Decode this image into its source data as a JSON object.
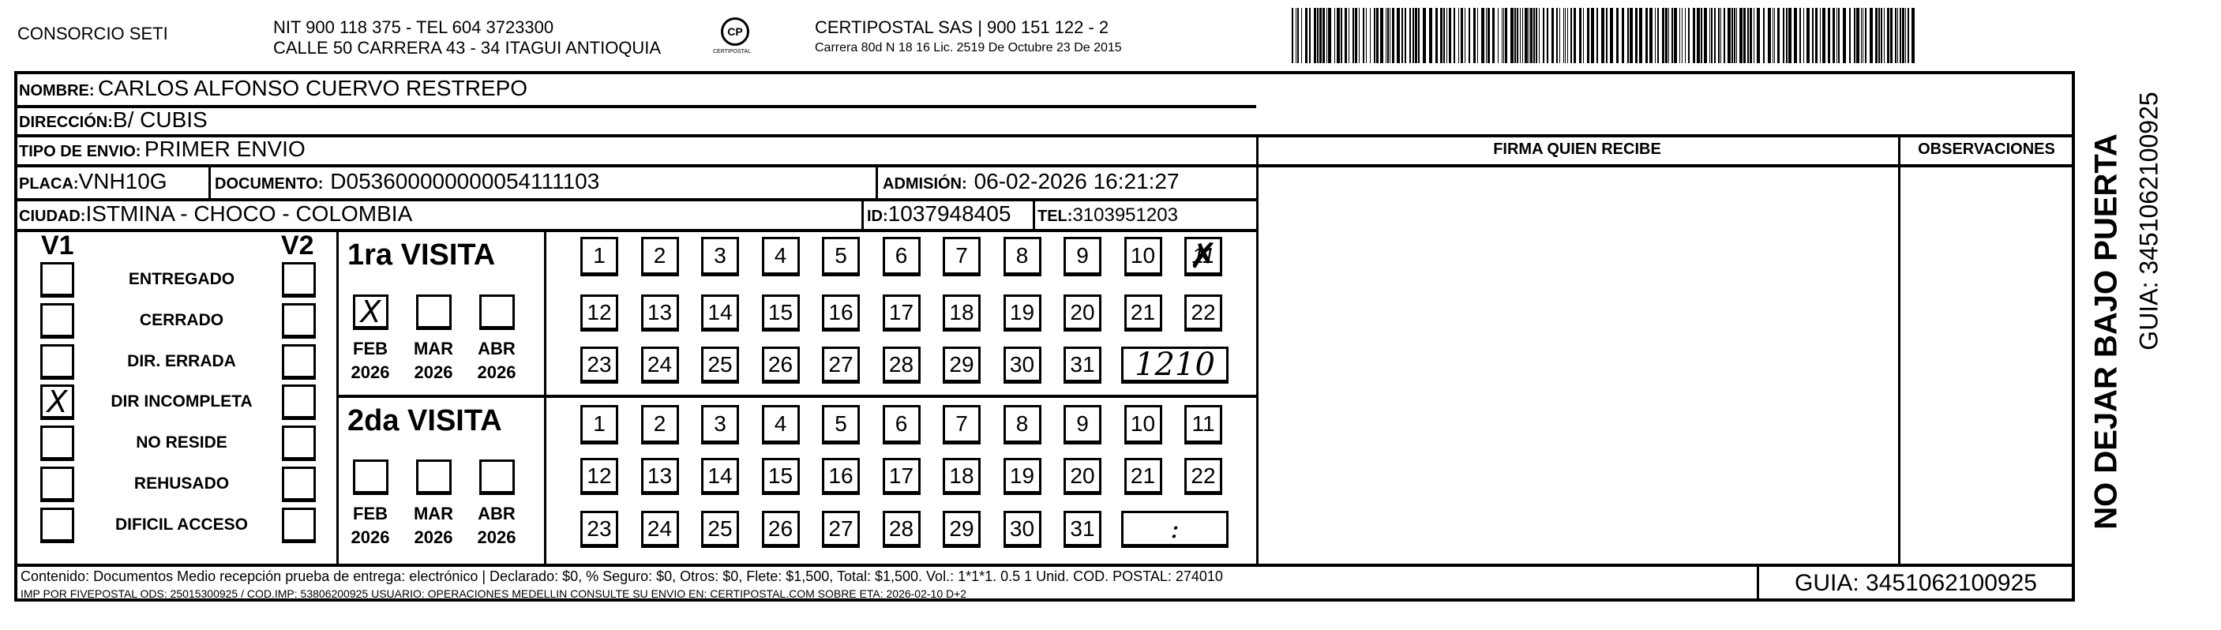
{
  "header": {
    "company": "CONSORCIO SETI",
    "nit_line": "NIT 900 118 375 - TEL 604 3723300",
    "address_line": "CALLE 50 CARRERA 43 - 34 ITAGUI ANTIOQUIA",
    "logo_text": "CERTIPOSTAL",
    "carrier_line": "CERTIPOSTAL SAS | 900 151 122 - 2",
    "license_line": "Carrera 80d N 18 16  Lic. 2519 De Octubre 23 De 2015"
  },
  "fields": {
    "nombre_label": "NOMBRE:",
    "nombre": "CARLOS ALFONSO CUERVO RESTREPO",
    "direccion_label": "DIRECCIÓN:",
    "direccion": "B/ CUBIS",
    "tipo_label": "TIPO DE ENVIO:",
    "tipo": "PRIMER ENVIO",
    "placa_label": "PLACA:",
    "placa": "VNH10G",
    "documento_label": "DOCUMENTO:",
    "documento": "D053600000000054111103",
    "admision_label": "ADMISIÓN:",
    "admision": "06-02-2026 16:21:27",
    "ciudad_label": "CIUDAD:",
    "ciudad": "ISTMINA - CHOCO - COLOMBIA",
    "id_label": "ID:",
    "id": "1037948405",
    "tel_label": "TEL:",
    "tel": "3103951203"
  },
  "columns": {
    "firma": "FIRMA QUIEN RECIBE",
    "observaciones": "OBSERVACIONES"
  },
  "status": {
    "v1": "V1",
    "v2": "V2",
    "options": [
      {
        "label": "ENTREGADO",
        "v1": false,
        "v2": false
      },
      {
        "label": "CERRADO",
        "v1": false,
        "v2": false
      },
      {
        "label": "DIR. ERRADA",
        "v1": false,
        "v2": false
      },
      {
        "label": "DIR INCOMPLETA",
        "v1": true,
        "v2": false
      },
      {
        "label": "NO RESIDE",
        "v1": false,
        "v2": false
      },
      {
        "label": "REHUSADO",
        "v1": false,
        "v2": false
      },
      {
        "label": "DIFICIL ACCESO",
        "v1": false,
        "v2": false
      }
    ]
  },
  "visits": [
    {
      "title": "1ra VISITA",
      "months": [
        {
          "m": "FEB",
          "y": "2026",
          "checked": true
        },
        {
          "m": "MAR",
          "y": "2026",
          "checked": false
        },
        {
          "m": "ABR",
          "y": "2026",
          "checked": false
        }
      ],
      "marked_day": 11,
      "time": "1210"
    },
    {
      "title": "2da VISITA",
      "months": [
        {
          "m": "FEB",
          "y": "2026",
          "checked": false
        },
        {
          "m": "MAR",
          "y": "2026",
          "checked": false
        },
        {
          "m": "ABR",
          "y": "2026",
          "checked": false
        }
      ],
      "marked_day": null,
      "time": ":"
    }
  ],
  "footer": {
    "contenido": "Contenido: Documentos Medio recepción prueba de entrega: electrónico | Declarado: $0, % Seguro: $0, Otros: $0, Flete: $1,500, Total: $1,500. Vol.: 1*1*1. 0.5  1 Unid. COD. POSTAL: 274010",
    "imp": "IMP POR FIVEPOSTAL ODS: 25015300925 / COD.IMP: 53806200925 USUARIO: OPERACIONES MEDELLIN CONSULTE SU ENVIO EN: CERTIPOSTAL.COM SOBRE ETA: 2026-02-10 D+2",
    "guia": "GUIA: 3451062100925"
  },
  "side": {
    "warning": "NO DEJAR BAJO PUERTA",
    "guia": "GUIA: 3451062100925"
  },
  "mark_symbol": "X"
}
